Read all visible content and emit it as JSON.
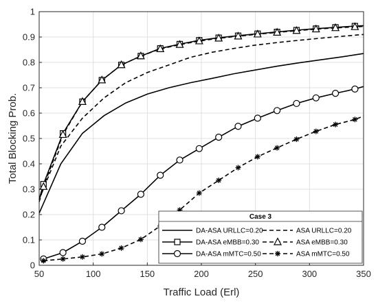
{
  "chart_data": {
    "type": "line",
    "title": "",
    "xlabel": "Traffic Load (Erl)",
    "ylabel": "Total Blocking Prob.",
    "xlim": [
      50,
      350
    ],
    "ylim": [
      0,
      1
    ],
    "xticks": [
      50,
      100,
      150,
      200,
      250,
      300,
      350
    ],
    "yticks": [
      0,
      0.1,
      0.2,
      0.3,
      0.4,
      0.5,
      0.6,
      0.7,
      0.8,
      0.9,
      1
    ],
    "grid": true,
    "legend": {
      "title": "Case 3",
      "placement": "bottom-right",
      "columns": 2
    },
    "series": [
      {
        "name": "DA-ASA URLLC=0.20",
        "style": "solid",
        "marker": "none",
        "x": [
          50,
          70,
          90,
          110,
          130,
          150,
          170,
          190,
          210,
          230,
          250,
          270,
          290,
          310,
          330,
          350
        ],
        "y": [
          0.205,
          0.4,
          0.52,
          0.59,
          0.64,
          0.675,
          0.7,
          0.72,
          0.737,
          0.755,
          0.77,
          0.785,
          0.798,
          0.81,
          0.822,
          0.835
        ]
      },
      {
        "name": "ASA URLLC=0.20",
        "style": "dashed",
        "marker": "none",
        "x": [
          50,
          70,
          90,
          110,
          130,
          150,
          170,
          190,
          210,
          230,
          250,
          270,
          290,
          310,
          330,
          350
        ],
        "y": [
          0.26,
          0.47,
          0.58,
          0.66,
          0.72,
          0.76,
          0.79,
          0.82,
          0.84,
          0.855,
          0.868,
          0.878,
          0.887,
          0.895,
          0.903,
          0.91
        ]
      },
      {
        "name": "DA-ASA eMBB=0.30",
        "style": "solid",
        "marker": "square",
        "x": [
          50,
          54,
          72,
          90,
          108,
          126,
          144,
          162,
          180,
          198,
          216,
          234,
          252,
          270,
          288,
          306,
          324,
          342,
          350
        ],
        "y": [
          0.26,
          0.32,
          0.52,
          0.645,
          0.73,
          0.79,
          0.825,
          0.855,
          0.872,
          0.887,
          0.897,
          0.905,
          0.913,
          0.92,
          0.927,
          0.933,
          0.938,
          0.943,
          0.945
        ]
      },
      {
        "name": "ASA eMBB=0.30",
        "style": "dashed",
        "marker": "triangle",
        "x": [
          50,
          54,
          72,
          90,
          108,
          126,
          144,
          162,
          180,
          198,
          216,
          234,
          252,
          270,
          288,
          306,
          324,
          342,
          350
        ],
        "y": [
          0.25,
          0.31,
          0.515,
          0.645,
          0.73,
          0.79,
          0.825,
          0.853,
          0.87,
          0.884,
          0.895,
          0.903,
          0.911,
          0.918,
          0.925,
          0.931,
          0.936,
          0.94,
          0.942
        ]
      },
      {
        "name": "DA-ASA mMTC=0.50",
        "style": "solid",
        "marker": "circle",
        "x": [
          54,
          72,
          90,
          108,
          126,
          144,
          162,
          180,
          198,
          216,
          234,
          252,
          270,
          288,
          306,
          324,
          342,
          350
        ],
        "y": [
          0.025,
          0.05,
          0.095,
          0.15,
          0.215,
          0.28,
          0.355,
          0.415,
          0.46,
          0.505,
          0.548,
          0.58,
          0.61,
          0.638,
          0.66,
          0.678,
          0.695,
          0.705
        ]
      },
      {
        "name": "ASA mMTC=0.50",
        "style": "dashed",
        "marker": "asterisk",
        "x": [
          54,
          72,
          90,
          108,
          126,
          144,
          162,
          180,
          198,
          216,
          234,
          252,
          270,
          288,
          306,
          324,
          342,
          350
        ],
        "y": [
          0.018,
          0.025,
          0.033,
          0.045,
          0.068,
          0.102,
          0.155,
          0.218,
          0.285,
          0.335,
          0.385,
          0.428,
          0.463,
          0.497,
          0.528,
          0.555,
          0.575,
          0.588
        ]
      }
    ]
  }
}
